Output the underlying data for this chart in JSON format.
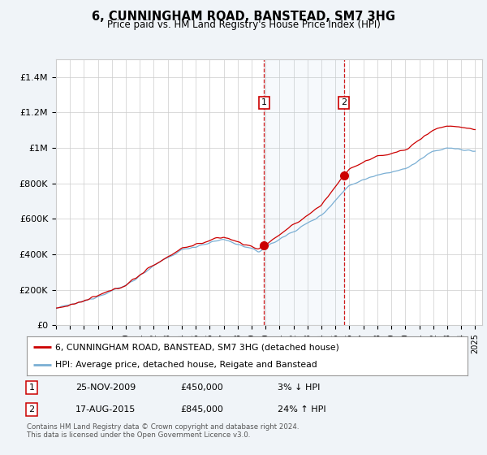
{
  "title": "6, CUNNINGHAM ROAD, BANSTEAD, SM7 3HG",
  "subtitle": "Price paid vs. HM Land Registry's House Price Index (HPI)",
  "legend_line1": "6, CUNNINGHAM ROAD, BANSTEAD, SM7 3HG (detached house)",
  "legend_line2": "HPI: Average price, detached house, Reigate and Banstead",
  "transaction1_date": "25-NOV-2009",
  "transaction1_price": "£450,000",
  "transaction1_hpi": "3% ↓ HPI",
  "transaction2_date": "17-AUG-2015",
  "transaction2_price": "£845,000",
  "transaction2_hpi": "24% ↑ HPI",
  "footnote1": "Contains HM Land Registry data © Crown copyright and database right 2024.",
  "footnote2": "This data is licensed under the Open Government Licence v3.0.",
  "ylim": [
    0,
    1500000
  ],
  "yticks": [
    0,
    200000,
    400000,
    600000,
    800000,
    1000000,
    1200000,
    1400000
  ],
  "ytick_labels": [
    "£0",
    "£200K",
    "£400K",
    "£600K",
    "£800K",
    "£1M",
    "£1.2M",
    "£1.4M"
  ],
  "bg_color": "#f0f4f8",
  "plot_bg": "#ffffff",
  "red_color": "#cc0000",
  "blue_color": "#7aafd4",
  "transaction1_year": 2009.9,
  "transaction2_year": 2015.6,
  "transaction1_value": 450000,
  "transaction2_value": 845000,
  "xstart": 1995,
  "xend": 2025
}
